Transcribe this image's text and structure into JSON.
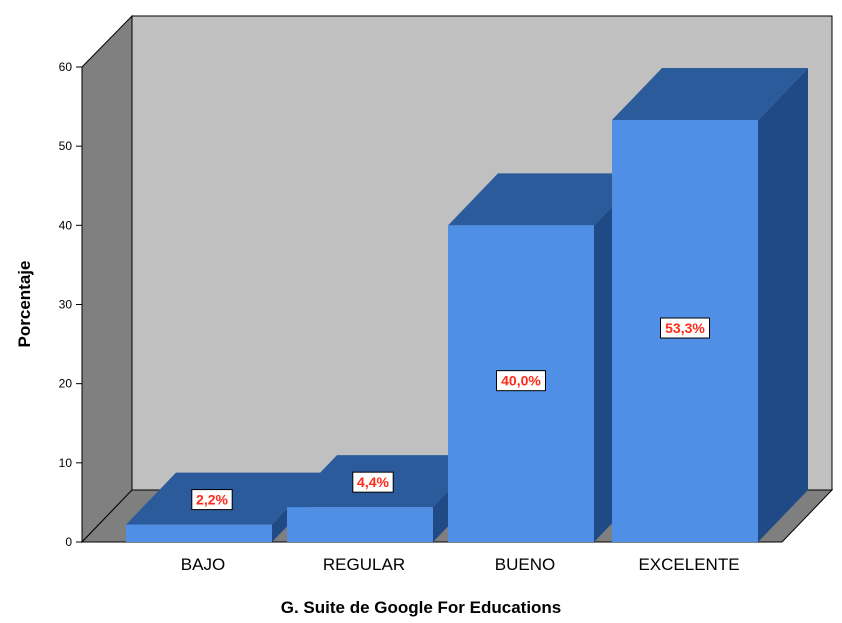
{
  "chart_data": {
    "type": "bar",
    "style": "3d",
    "categories": [
      "BAJO",
      "REGULAR",
      "BUENO",
      "EXCELENTE"
    ],
    "values": [
      2.2,
      4.4,
      40.0,
      53.3
    ],
    "data_labels": [
      "2,2%",
      "4,4%",
      "40,0%",
      "53,3%"
    ],
    "xlabel": "G. Suite de Google For Educations",
    "ylabel": "Porcentaje",
    "ylim": [
      0,
      60
    ],
    "yticks": [
      "0",
      "10",
      "20",
      "30",
      "40",
      "50",
      "60"
    ],
    "grid": false,
    "legend": "none",
    "colors": {
      "bar_front": "#4f8fe6",
      "bar_top": "#2c5b9c",
      "bar_side": "#1f4a86",
      "back_wall": "#c0c0c0",
      "side_wall": "#808080",
      "floor": "#7f7f7f",
      "label_text": "#ff2a1a"
    }
  }
}
